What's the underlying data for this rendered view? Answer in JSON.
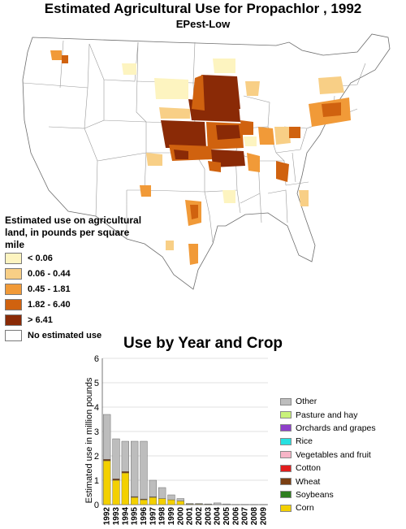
{
  "header": {
    "title": "Estimated Agricultural Use for Propachlor , 1992",
    "subtitle": "EPest-Low"
  },
  "map_legend": {
    "title": "Estimated use on agricultural land, in pounds per square mile",
    "items": [
      {
        "label": "< 0.06",
        "color": "#fdf4c0"
      },
      {
        "label": "0.06 - 0.44",
        "color": "#f8cf86"
      },
      {
        "label": "0.45 - 1.81",
        "color": "#f19a38"
      },
      {
        "label": "1.82 - 6.40",
        "color": "#d0620f"
      },
      {
        "label": "> 6.41",
        "color": "#8a2a06"
      },
      {
        "label": "No estimated use",
        "color": "#ffffff"
      }
    ]
  },
  "chart_data": {
    "type": "bar",
    "title": "Use by Year and Crop",
    "ylabel": "Estimated use in million pounds",
    "xlabel": "",
    "ylim": [
      0,
      6
    ],
    "yticks": [
      "0",
      "1",
      "2",
      "3",
      "4",
      "5",
      "6"
    ],
    "grid": true,
    "stacked": true,
    "legend_position": "right",
    "categories": [
      "1992",
      "1993",
      "1994",
      "1995",
      "1996",
      "1997",
      "1998",
      "1999",
      "2000",
      "2001",
      "2002",
      "2003",
      "2004",
      "2005",
      "2006",
      "2007",
      "2008",
      "2009"
    ],
    "series": [
      {
        "name": "Corn",
        "color": "#f3d000",
        "values": [
          1.8,
          1.0,
          1.3,
          0.3,
          0.2,
          0.3,
          0.25,
          0.2,
          0.15,
          0.02,
          0.02,
          0.01,
          0.0,
          0.0,
          0.0,
          0.0,
          0.0,
          0.0
        ]
      },
      {
        "name": "Soybeans",
        "color": "#2e7d1e",
        "values": [
          0.0,
          0.0,
          0.0,
          0.0,
          0.0,
          0.0,
          0.0,
          0.0,
          0.0,
          0.0,
          0.0,
          0.0,
          0.0,
          0.0,
          0.0,
          0.0,
          0.0,
          0.0
        ]
      },
      {
        "name": "Wheat",
        "color": "#7b3f12",
        "values": [
          0.06,
          0.06,
          0.06,
          0.03,
          0.03,
          0.02,
          0.0,
          0.0,
          0.0,
          0.0,
          0.0,
          0.0,
          0.0,
          0.0,
          0.0,
          0.0,
          0.0,
          0.0
        ]
      },
      {
        "name": "Cotton",
        "color": "#e11d1d",
        "values": [
          0.0,
          0.0,
          0.0,
          0.0,
          0.0,
          0.0,
          0.0,
          0.0,
          0.0,
          0.0,
          0.0,
          0.0,
          0.0,
          0.0,
          0.0,
          0.0,
          0.0,
          0.0
        ]
      },
      {
        "name": "Vegetables and fruit",
        "color": "#f7b5c7",
        "values": [
          0.0,
          0.0,
          0.0,
          0.0,
          0.0,
          0.0,
          0.0,
          0.0,
          0.0,
          0.0,
          0.0,
          0.0,
          0.0,
          0.0,
          0.0,
          0.0,
          0.0,
          0.0
        ]
      },
      {
        "name": "Rice",
        "color": "#27e0e0",
        "values": [
          0.0,
          0.0,
          0.0,
          0.0,
          0.0,
          0.0,
          0.0,
          0.0,
          0.0,
          0.0,
          0.0,
          0.0,
          0.0,
          0.0,
          0.0,
          0.0,
          0.0,
          0.0
        ]
      },
      {
        "name": "Orchards and grapes",
        "color": "#8e3fc9",
        "values": [
          0.0,
          0.0,
          0.0,
          0.0,
          0.0,
          0.0,
          0.0,
          0.0,
          0.0,
          0.0,
          0.0,
          0.0,
          0.0,
          0.0,
          0.0,
          0.0,
          0.0,
          0.0
        ]
      },
      {
        "name": "Pasture and hay",
        "color": "#c9f27a",
        "values": [
          0.0,
          0.0,
          0.0,
          0.0,
          0.0,
          0.0,
          0.0,
          0.0,
          0.0,
          0.0,
          0.0,
          0.0,
          0.0,
          0.0,
          0.0,
          0.0,
          0.0,
          0.0
        ]
      },
      {
        "name": "Other",
        "color": "#bdbdbd",
        "values": [
          1.84,
          1.64,
          1.24,
          2.27,
          2.37,
          0.68,
          0.45,
          0.2,
          0.1,
          0.03,
          0.03,
          0.02,
          0.07,
          0.03,
          0.01,
          0.01,
          0.01,
          0.01
        ]
      }
    ]
  }
}
